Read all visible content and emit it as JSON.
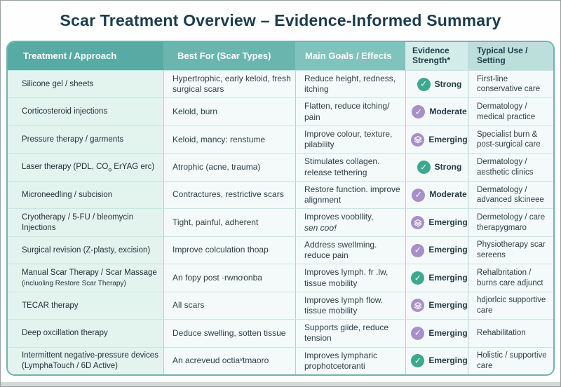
{
  "chart_data": {
    "type": "table",
    "title": "Scar Treatment Overview – Evidence-Informed Summary",
    "legend_position": "none",
    "columns": [
      {
        "label": "Treatment / Approach"
      },
      {
        "label": "Best For (Scar Types)"
      },
      {
        "label": "Main Goals / Effects"
      },
      {
        "label": "Evidence Strength*"
      },
      {
        "label": "Typical Use / Setting"
      }
    ],
    "evidence_colors": {
      "green": "#3ca88d",
      "purple": "#a78fca"
    },
    "rows": [
      {
        "treatment": "Silicone gel / sheets",
        "best_for": "Hypertrophic, early keloid, fresh surgical scars",
        "goals": "Reduce height, redness, itching",
        "evidence": {
          "label": "Strong",
          "icon": "check-icon",
          "color": "green"
        },
        "typical": "First-line conservative care"
      },
      {
        "treatment": "Corticosteroid injections",
        "best_for": "Kelold, burn",
        "goals": "Flatten, reduce itching/ pain",
        "evidence": {
          "label": "Moderate",
          "icon": "check-icon",
          "color": "purple"
        },
        "typical": "Dermatology / medical practice"
      },
      {
        "treatment": "Pressure therapy / garments",
        "best_for": "Keloid, mancy: renstume",
        "goals": "Improve colour, texture, pilability",
        "evidence": {
          "label": "Emerging",
          "icon": "layers-icon",
          "color": "purple"
        },
        "typical": "Specialist burn & post-surgical care"
      },
      {
        "treatment": "Laser therapy (PDL, CO",
        "treatment_sub": "o",
        "treatment_post": " ErYAG erc)",
        "best_for": "Atrophic (acne, trauma)",
        "goals": "Stimulates collagen. release tethering",
        "evidence": {
          "label": "Strong",
          "icon": "check-icon",
          "color": "green"
        },
        "typical": "Dermatology / aesthetic clinics"
      },
      {
        "treatment": "Microneedling / subcision",
        "best_for": "Contractures, restrictive scars",
        "goals": "Restore function. improve alignment",
        "evidence": {
          "label": "Moderate",
          "icon": "check-icon",
          "color": "purple"
        },
        "typical": "Dermatology / advanced sk:ineee"
      },
      {
        "treatment": "Cryotherapy / 5-FU / bleomycin Injections",
        "best_for": "Tight, painful, adherent",
        "goals": "Improves voobllity,",
        "goals_italic": "sen coơ!",
        "evidence": {
          "label": "Emerging",
          "icon": "layers-icon",
          "color": "purple"
        },
        "typical": "Dermetology / care therapygmaro"
      },
      {
        "treatment": "Surgical revision (Z-plasty, excision)",
        "best_for": "Improve colculation thoap",
        "goals": "Address swellming. reduce pain",
        "evidence": {
          "label": "Emerging",
          "icon": "check-icon",
          "color": "purple"
        },
        "typical": "Physiotherapy scar sereens"
      },
      {
        "treatment": "Manual Scar Therapy / Scar Massage",
        "treatment_small": "(incluoling Restore Scar Therapy)",
        "best_for": "An fopy post ·rwnơonba",
        "goals": "Improves lymph. fr .lw, tissue mobility",
        "evidence": {
          "label": "Emerging",
          "icon": "check-icon",
          "color": "green"
        },
        "typical": "Rehalbritation / burns care adjunct"
      },
      {
        "treatment": "TECAR therapy",
        "best_for": "All scars",
        "goals": "Improves lymph flow. tissue mobility",
        "evidence": {
          "label": "Emerging",
          "icon": "layers-icon",
          "color": "purple"
        },
        "typical": "hdjorlcic supportive care"
      },
      {
        "treatment": "Deep oxcillation therapy",
        "best_for": "Deduce swelling, sotten tissue",
        "goals": "Supports giide, reduce tension",
        "evidence": {
          "label": "Emerging",
          "icon": "check-icon",
          "color": "purple"
        },
        "typical": "Rehabilitation"
      },
      {
        "treatment": "Intermittent negative-pressure devices (LymphaTouch / 6D Active)",
        "best_for": "An acreveud octiaᵛtmaoro",
        "goals": "Improves lympharic prophotcetoranti",
        "evidence": {
          "label": "Emerging",
          "icon": "check-icon",
          "color": "green"
        },
        "typical": "Holistic / supportive care"
      }
    ]
  }
}
